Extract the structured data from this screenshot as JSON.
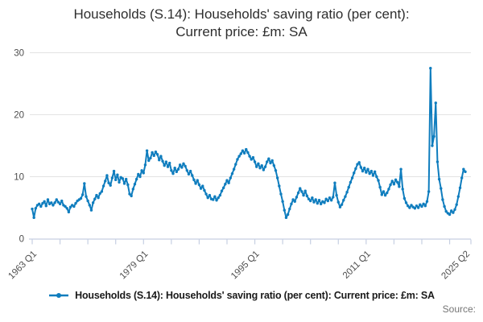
{
  "title": {
    "line1": "Households (S.14): Households' saving ratio (per cent):",
    "line2": "Current price: £m: SA"
  },
  "legend": {
    "label": "Households (S.14): Households' saving ratio (per cent): Current price: £m: SA"
  },
  "source_label": "Source:",
  "colors": {
    "line": "#0f7dbe",
    "grid": "#e3e3e3",
    "axis": "#c6cfe2",
    "tick_text": "#4d4d4d",
    "title_text": "#2e2e2e",
    "source_text": "#757575"
  },
  "chart_data": {
    "type": "line",
    "title": "Households (S.14): Households' saving ratio (per cent): Current price: £m: SA",
    "frequency": "quarterly",
    "x_start": "1963 Q1",
    "x_end": "2025 Q2",
    "ylim": [
      0,
      30
    ],
    "yticks": [
      0,
      10,
      20,
      30
    ],
    "grid": "horizontal-only",
    "legend_position": "bottom",
    "xtick_labels": [
      {
        "label": "1963 Q1",
        "index": 0
      },
      {
        "label": "1979 Q1",
        "index": 64
      },
      {
        "label": "1995 Q1",
        "index": 128
      },
      {
        "label": "2011 Q1",
        "index": 192
      },
      {
        "label": "2025 Q2",
        "index": 249
      }
    ],
    "minor_tick_every_quarters": 16,
    "values": [
      4.8,
      3.4,
      4.9,
      5.4,
      5.6,
      5.2,
      5.7,
      6.0,
      5.3,
      6.3,
      5.6,
      5.8,
      5.4,
      5.8,
      6.3,
      5.9,
      5.6,
      6.1,
      5.4,
      5.2,
      4.9,
      4.3,
      5.1,
      5.4,
      5.2,
      5.7,
      6.1,
      6.3,
      6.5,
      7.1,
      8.9,
      6.8,
      6.1,
      5.4,
      4.6,
      5.8,
      6.4,
      7.0,
      6.6,
      7.3,
      7.6,
      8.5,
      9.3,
      10.2,
      9.0,
      8.6,
      9.8,
      10.9,
      9.5,
      10.3,
      9.1,
      9.9,
      9.7,
      8.9,
      9.6,
      8.7,
      7.2,
      6.9,
      8.0,
      8.8,
      9.6,
      10.4,
      10.0,
      11.0,
      10.6,
      11.9,
      14.2,
      12.6,
      13.0,
      13.9,
      13.4,
      14.0,
      13.6,
      12.7,
      13.3,
      12.5,
      11.8,
      12.4,
      11.6,
      12.2,
      11.0,
      10.5,
      11.4,
      10.8,
      11.2,
      11.9,
      11.5,
      12.1,
      11.7,
      11.0,
      10.4,
      10.9,
      10.2,
      9.5,
      8.9,
      9.4,
      8.7,
      8.1,
      8.5,
      7.8,
      7.2,
      6.6,
      7.0,
      6.4,
      6.3,
      6.8,
      6.2,
      6.6,
      7.0,
      7.7,
      8.2,
      8.8,
      9.4,
      9.0,
      9.8,
      10.5,
      11.2,
      12.0,
      12.8,
      13.3,
      13.7,
      14.2,
      13.8,
      14.4,
      13.9,
      13.3,
      12.8,
      13.1,
      12.4,
      11.6,
      12.1,
      11.4,
      11.8,
      11.1,
      11.6,
      12.4,
      12.9,
      12.2,
      12.6,
      11.8,
      11.0,
      9.8,
      8.5,
      7.2,
      6.0,
      4.6,
      3.4,
      3.9,
      4.8,
      5.6,
      6.3,
      6.0,
      6.7,
      7.4,
      8.1,
      7.6,
      7.0,
      7.7,
      6.9,
      6.4,
      6.1,
      6.6,
      5.9,
      6.3,
      5.7,
      6.2,
      5.6,
      6.0,
      5.8,
      6.4,
      6.1,
      6.6,
      6.2,
      6.7,
      9.0,
      7.0,
      5.9,
      5.1,
      5.5,
      6.2,
      6.8,
      7.5,
      8.3,
      9.1,
      9.8,
      10.6,
      11.3,
      12.0,
      12.3,
      11.5,
      10.9,
      11.4,
      10.7,
      11.2,
      10.5,
      10.9,
      10.2,
      10.8,
      10.0,
      9.4,
      8.3,
      7.1,
      7.6,
      7.0,
      7.4,
      8.0,
      8.7,
      9.3,
      8.8,
      9.5,
      9.1,
      8.4,
      11.2,
      8.0,
      6.5,
      5.8,
      5.3,
      5.0,
      5.4,
      5.1,
      4.9,
      5.3,
      5.0,
      5.5,
      5.2,
      5.6,
      5.3,
      6.0,
      7.6,
      27.5,
      15.0,
      16.5,
      21.9,
      12.4,
      9.6,
      8.1,
      6.3,
      5.2,
      4.4,
      4.1,
      3.9,
      4.5,
      4.2,
      4.7,
      5.5,
      6.8,
      8.2,
      9.8,
      11.2,
      10.8
    ]
  }
}
